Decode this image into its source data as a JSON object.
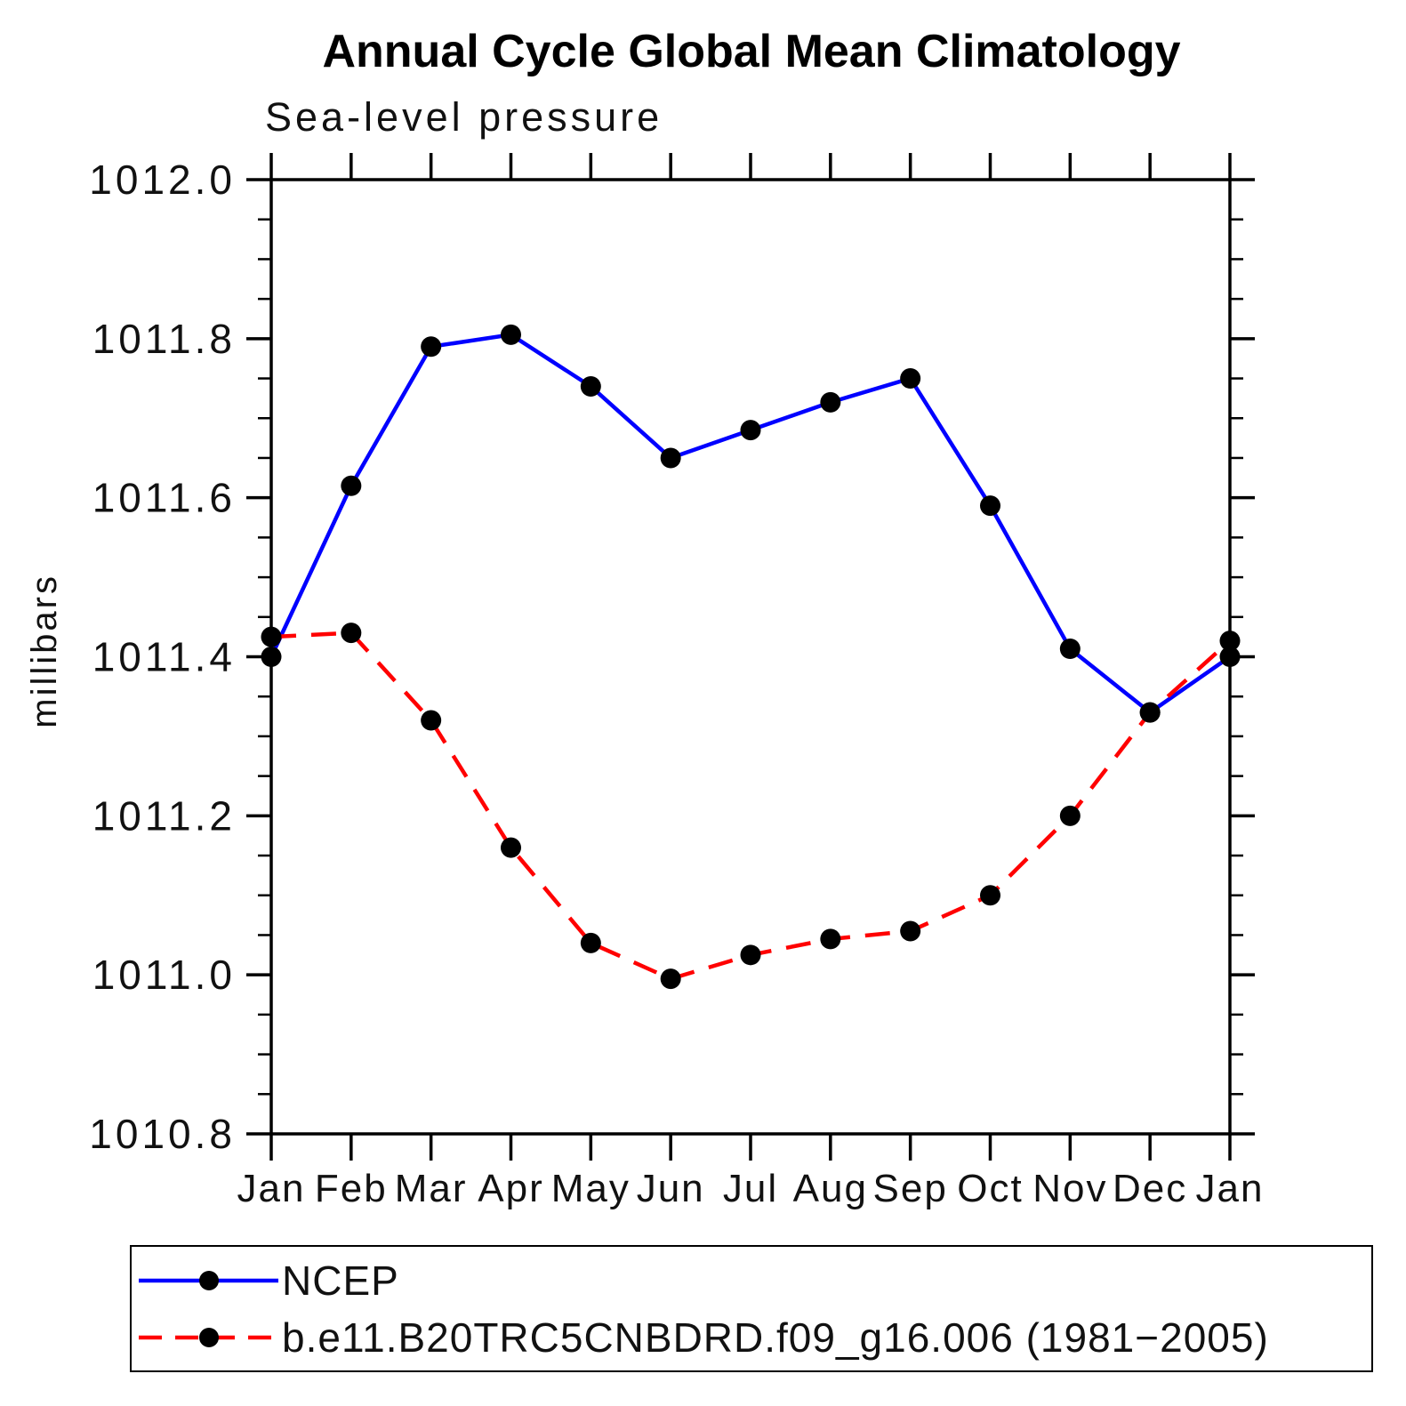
{
  "title": "Annual Cycle Global Mean Climatology",
  "subtitle": "Sea-level pressure",
  "chart_data": {
    "type": "line",
    "title": "Annual Cycle Global Mean Climatology",
    "subtitle": "Sea-level pressure",
    "xlabel": "",
    "ylabel": "millibars",
    "categories": [
      "Jan",
      "Feb",
      "Mar",
      "Apr",
      "May",
      "Jun",
      "Jul",
      "Aug",
      "Sep",
      "Oct",
      "Nov",
      "Dec",
      "Jan"
    ],
    "series": [
      {
        "name": "NCEP",
        "line_color": "#0000ff",
        "line_style": "solid",
        "marker_color": "#000000",
        "values": [
          1011.4,
          1011.615,
          1011.79,
          1011.805,
          1011.74,
          1011.65,
          1011.685,
          1011.72,
          1011.75,
          1011.59,
          1011.41,
          1011.33,
          1011.4
        ]
      },
      {
        "name": "b.e11.B20TRC5CNBDRD.f09_g16.006 (1981−2005)",
        "line_color": "#ff0000",
        "line_style": "dashed",
        "marker_color": "#000000",
        "values": [
          1011.425,
          1011.43,
          1011.32,
          1011.16,
          1011.04,
          1010.995,
          1011.025,
          1011.045,
          1011.055,
          1011.1,
          1011.2,
          1011.33,
          1011.42
        ]
      }
    ],
    "ylim": [
      1010.8,
      1012.0
    ],
    "y_major_step": 0.2,
    "y_minor_step": 0.05,
    "y_tick_labels": [
      "1012.0",
      "1011.8",
      "1011.6",
      "1011.4",
      "1011.2",
      "1011.0",
      "1010.8"
    ],
    "grid": "off",
    "legend_position": "bottom-left-box",
    "axis_color": "#000000",
    "text_color": "#111111"
  }
}
